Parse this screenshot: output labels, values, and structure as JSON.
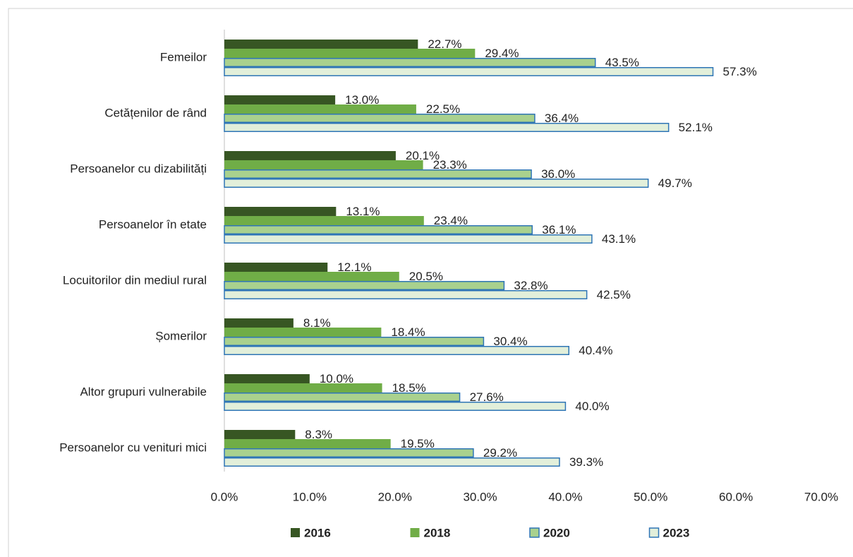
{
  "chart_data": {
    "type": "barh",
    "categories": [
      "Femeilor",
      "Cetățenilor de rând",
      "Persoanelor cu dizabilități",
      "Persoanelor în etate",
      "Locuitorilor din mediul rural",
      "Șomerilor",
      "Altor grupuri vulnerabile",
      "Persoanelor cu venituri mici"
    ],
    "series": [
      {
        "name": "2016",
        "color": "#375623",
        "edgecolor": "#375623",
        "values": [
          22.7,
          13.0,
          20.1,
          13.1,
          12.1,
          8.1,
          10.0,
          8.3
        ],
        "value_labels": [
          "22.7%",
          "13.0%",
          "20.1%",
          "13.1%",
          "12.1%",
          "8.1%",
          "10.0%",
          "8.3%"
        ]
      },
      {
        "name": "2018",
        "color": "#70ad47",
        "edgecolor": "#70ad47",
        "values": [
          29.4,
          22.5,
          23.3,
          23.4,
          20.5,
          18.4,
          18.5,
          19.5
        ],
        "value_labels": [
          "29.4%",
          "22.5%",
          "23.3%",
          "23.4%",
          "20.5%",
          "18.4%",
          "18.5%",
          "19.5%"
        ]
      },
      {
        "name": "2020",
        "color": "#a9d18e",
        "edgecolor": "#2e75b6",
        "values": [
          43.5,
          36.4,
          36.0,
          36.1,
          32.8,
          30.4,
          27.6,
          29.2
        ],
        "value_labels": [
          "43.5%",
          "36.4%",
          "36.0%",
          "36.1%",
          "32.8%",
          "30.4%",
          "27.6%",
          "29.2%"
        ]
      },
      {
        "name": "2023",
        "color": "#e2efda",
        "edgecolor": "#2e75b6",
        "values": [
          57.3,
          52.1,
          49.7,
          43.1,
          42.5,
          40.4,
          40.0,
          39.3
        ],
        "value_labels": [
          "57.3%",
          "52.1%",
          "49.7%",
          "43.1%",
          "42.5%",
          "40.4%",
          "40.0%",
          "39.3%"
        ]
      }
    ],
    "xlim": [
      0,
      70
    ],
    "xticks": [
      {
        "value": 0,
        "label": "0.0%"
      },
      {
        "value": 10,
        "label": "10.0%"
      },
      {
        "value": 20,
        "label": "20.0%"
      },
      {
        "value": 30,
        "label": "30.0%"
      },
      {
        "value": 40,
        "label": "40.0%"
      },
      {
        "value": 50,
        "label": "50.0%"
      },
      {
        "value": 60,
        "label": "60.0%"
      },
      {
        "value": 70,
        "label": "70.0%"
      }
    ],
    "grid": false,
    "legend": "bottom"
  }
}
